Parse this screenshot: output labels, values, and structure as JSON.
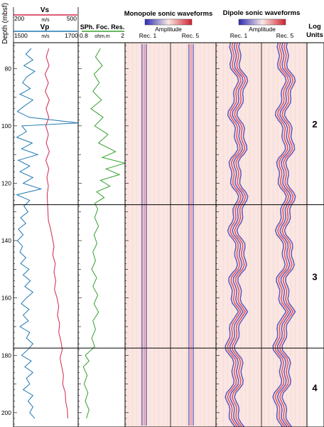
{
  "chart_data": {
    "type": "line",
    "depth_axis": {
      "label": "Depth (mbsf)",
      "range": [
        71,
        205
      ],
      "ticks": [
        80,
        100,
        120,
        140,
        160,
        180,
        200
      ]
    },
    "series": [
      {
        "name": "Vs",
        "unit": "m/s",
        "range": [
          200,
          500
        ],
        "color": "#d0264a",
        "points": [
          [
            73,
            364
          ],
          [
            76,
            352
          ],
          [
            79,
            365
          ],
          [
            82,
            346
          ],
          [
            85,
            362
          ],
          [
            88,
            347
          ],
          [
            91,
            366
          ],
          [
            94,
            351
          ],
          [
            97,
            364
          ],
          [
            100,
            350
          ],
          [
            103,
            362
          ],
          [
            106,
            352
          ],
          [
            109,
            366
          ],
          [
            112,
            350
          ],
          [
            115,
            364
          ],
          [
            118,
            355
          ],
          [
            121,
            362
          ],
          [
            124,
            356
          ],
          [
            127,
            358
          ],
          [
            130,
            360
          ],
          [
            133,
            362
          ],
          [
            136,
            372
          ],
          [
            139,
            380
          ],
          [
            142,
            388
          ],
          [
            145,
            382
          ],
          [
            148,
            394
          ],
          [
            151,
            388
          ],
          [
            154,
            396
          ],
          [
            157,
            390
          ],
          [
            160,
            402
          ],
          [
            163,
            410
          ],
          [
            166,
            404
          ],
          [
            169,
            414
          ],
          [
            172,
            410
          ],
          [
            175,
            420
          ],
          [
            178,
            426
          ],
          [
            181,
            416
          ],
          [
            184,
            424
          ],
          [
            187,
            432
          ],
          [
            190,
            428
          ],
          [
            193,
            440
          ],
          [
            196,
            442
          ],
          [
            199,
            450
          ],
          [
            202,
            452
          ]
        ]
      },
      {
        "name": "Vp",
        "unit": "m/s",
        "range": [
          1500,
          1700
        ],
        "color": "#1f78b4",
        "points": [
          [
            73,
            1555
          ],
          [
            75,
            1538
          ],
          [
            77,
            1560
          ],
          [
            79,
            1532
          ],
          [
            81,
            1566
          ],
          [
            83,
            1540
          ],
          [
            85,
            1528
          ],
          [
            87,
            1552
          ],
          [
            89,
            1520
          ],
          [
            91,
            1560
          ],
          [
            93,
            1534
          ],
          [
            95,
            1512
          ],
          [
            97,
            1548
          ],
          [
            99,
            1702
          ],
          [
            100,
            1526
          ],
          [
            102,
            1540
          ],
          [
            104,
            1510
          ],
          [
            106,
            1558
          ],
          [
            108,
            1525
          ],
          [
            110,
            1575
          ],
          [
            112,
            1515
          ],
          [
            114,
            1550
          ],
          [
            116,
            1520
          ],
          [
            118,
            1560
          ],
          [
            120,
            1530
          ],
          [
            122,
            1585
          ],
          [
            124,
            1510
          ],
          [
            126,
            1550
          ],
          [
            128,
            1532
          ],
          [
            130,
            1545
          ],
          [
            132,
            1522
          ],
          [
            134,
            1538
          ],
          [
            136,
            1515
          ],
          [
            138,
            1530
          ],
          [
            140,
            1512
          ],
          [
            142,
            1528
          ],
          [
            144,
            1520
          ],
          [
            146,
            1538
          ],
          [
            148,
            1522
          ],
          [
            150,
            1548
          ],
          [
            152,
            1530
          ],
          [
            154,
            1552
          ],
          [
            156,
            1535
          ],
          [
            158,
            1560
          ],
          [
            160,
            1540
          ],
          [
            162,
            1524
          ],
          [
            164,
            1548
          ],
          [
            166,
            1530
          ],
          [
            168,
            1546
          ],
          [
            170,
            1520
          ],
          [
            172,
            1550
          ],
          [
            174,
            1540
          ],
          [
            176,
            1560
          ],
          [
            178,
            1545
          ],
          [
            180,
            1525
          ],
          [
            182,
            1555
          ],
          [
            184,
            1535
          ],
          [
            186,
            1560
          ],
          [
            188,
            1540
          ],
          [
            190,
            1550
          ],
          [
            192,
            1530
          ],
          [
            194,
            1560
          ],
          [
            196,
            1545
          ],
          [
            198,
            1560
          ],
          [
            200,
            1550
          ],
          [
            202,
            1566
          ]
        ]
      },
      {
        "name": "SPh. Foc. Res.",
        "unit": "ohm.m",
        "range": [
          0.8,
          2
        ],
        "color": "#33a02c",
        "points": [
          [
            73,
            1.35
          ],
          [
            76,
            1.22
          ],
          [
            79,
            1.4
          ],
          [
            82,
            1.18
          ],
          [
            85,
            1.32
          ],
          [
            88,
            1.15
          ],
          [
            91,
            1.38
          ],
          [
            94,
            1.1
          ],
          [
            97,
            1.42
          ],
          [
            100,
            1.2
          ],
          [
            103,
            1.55
          ],
          [
            106,
            1.3
          ],
          [
            109,
            1.75
          ],
          [
            111,
            1.4
          ],
          [
            113,
            2.05
          ],
          [
            115,
            1.5
          ],
          [
            117,
            1.85
          ],
          [
            119,
            1.35
          ],
          [
            121,
            1.6
          ],
          [
            123,
            1.25
          ],
          [
            125,
            1.45
          ],
          [
            127,
            1.2
          ],
          [
            129,
            1.28
          ],
          [
            132,
            1.2
          ],
          [
            135,
            1.3
          ],
          [
            138,
            1.18
          ],
          [
            141,
            1.26
          ],
          [
            144,
            1.15
          ],
          [
            147,
            1.22
          ],
          [
            150,
            1.12
          ],
          [
            153,
            1.25
          ],
          [
            156,
            1.15
          ],
          [
            159,
            1.28
          ],
          [
            162,
            1.18
          ],
          [
            165,
            1.3
          ],
          [
            168,
            1.15
          ],
          [
            171,
            1.22
          ],
          [
            174,
            1.12
          ],
          [
            177,
            1.2
          ],
          [
            180,
            0.95
          ],
          [
            182,
            1.05
          ],
          [
            184,
            0.9
          ],
          [
            187,
            1.0
          ],
          [
            190,
            0.92
          ],
          [
            193,
            1.02
          ],
          [
            196,
            0.95
          ],
          [
            199,
            1.05
          ],
          [
            202,
            0.98
          ]
        ]
      }
    ],
    "waveform_panels": [
      {
        "title": "Monopole sonic waveforms",
        "colorbar_label": "Amplitude",
        "tracks": [
          "Rec. 1",
          "Rec. 5"
        ]
      },
      {
        "title": "Dipole sonic waveforms",
        "colorbar_label": "Amplitude",
        "tracks": [
          "Rec. 1",
          "Rec. 5"
        ]
      }
    ],
    "log_units": {
      "header": [
        "Log",
        "Units"
      ],
      "boundaries": [
        127.5,
        177.5
      ],
      "units": [
        {
          "label": "2",
          "top": 71,
          "bottom": 127.5
        },
        {
          "label": "3",
          "top": 127.5,
          "bottom": 177.5
        },
        {
          "label": "4",
          "top": 177.5,
          "bottom": 205
        }
      ]
    },
    "colors": {
      "vs": "#d0264a",
      "vp": "#1f78b4",
      "resistivity": "#33a02c",
      "colorbar_low": "#2b2bb5",
      "colorbar_mid": "#fbe9e5",
      "colorbar_high": "#d02030",
      "wave_background": "#fbe6e1"
    }
  }
}
